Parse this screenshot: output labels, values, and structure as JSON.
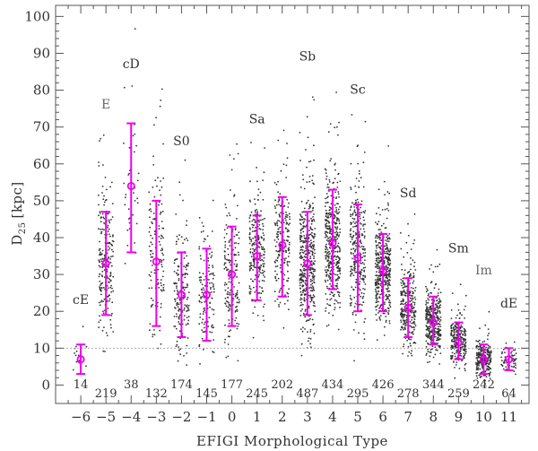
{
  "chart_data": {
    "type": "scatter",
    "title": "",
    "xlabel": "EFIGI Morphological Type",
    "ylabel_main": "D",
    "ylabel_sub": "25",
    "ylabel_unit": "[kpc]",
    "xlim": [
      -7.0,
      11.8
    ],
    "ylim": [
      -5,
      103
    ],
    "x_ticks": [
      -6,
      -5,
      -4,
      -3,
      -2,
      -1,
      0,
      1,
      2,
      3,
      4,
      5,
      6,
      7,
      8,
      9,
      10,
      11
    ],
    "x_tick_labels": [
      "−6",
      "−5",
      "−4",
      "−3",
      "−2",
      "−1",
      "0",
      "1",
      "2",
      "3",
      "4",
      "5",
      "6",
      "7",
      "8",
      "9",
      "10",
      "11"
    ],
    "y_ticks": [
      0,
      10,
      20,
      30,
      40,
      50,
      60,
      70,
      80,
      90,
      100
    ],
    "y_tick_labels": [
      "0",
      "10",
      "20",
      "30",
      "40",
      "50",
      "60",
      "70",
      "80",
      "90",
      "100"
    ],
    "reference_line_y": 10,
    "colors": {
      "points": "#333333",
      "median": "#ee00ee",
      "reference_line": "#aaaaaa",
      "axes": "#555555"
    },
    "series": [
      {
        "type": -6,
        "label": "cE",
        "count": "14",
        "median": 7,
        "err_low": 3,
        "err_high": 11,
        "label_y": 22
      },
      {
        "type": -5,
        "label": "E",
        "count": "219",
        "median": 33,
        "err_low": 19,
        "err_high": 47,
        "label_y": 75
      },
      {
        "type": -4,
        "label": "cD",
        "count": "38",
        "median": 54,
        "err_low": 36,
        "err_high": 71,
        "label_y": 86
      },
      {
        "type": -3,
        "label": "",
        "count": "132",
        "median": 33.5,
        "err_low": 16,
        "err_high": 50,
        "label_y": null
      },
      {
        "type": -2,
        "label": "S0",
        "count": "174",
        "median": 24.5,
        "err_low": 13,
        "err_high": 36,
        "label_y": 65
      },
      {
        "type": -1,
        "label": "",
        "count": "145",
        "median": 24.5,
        "err_low": 12,
        "err_high": 37,
        "label_y": null
      },
      {
        "type": 0,
        "label": "",
        "count": "177",
        "median": 30,
        "err_low": 16,
        "err_high": 43,
        "label_y": null
      },
      {
        "type": 1,
        "label": "Sa",
        "count": "245",
        "median": 35,
        "err_low": 23,
        "err_high": 46,
        "label_y": 71
      },
      {
        "type": 2,
        "label": "",
        "count": "202",
        "median": 38,
        "err_low": 24,
        "err_high": 51,
        "label_y": null
      },
      {
        "type": 3,
        "label": "Sb",
        "count": "487",
        "median": 33,
        "err_low": 19,
        "err_high": 47,
        "label_y": 88
      },
      {
        "type": 4,
        "label": "",
        "count": "434",
        "median": 38.5,
        "err_low": 26,
        "err_high": 53,
        "label_y": null
      },
      {
        "type": 5,
        "label": "Sc",
        "count": "295",
        "median": 34.5,
        "err_low": 20,
        "err_high": 49,
        "label_y": 79
      },
      {
        "type": 6,
        "label": "",
        "count": "426",
        "median": 31,
        "err_low": 20,
        "err_high": 41,
        "label_y": null
      },
      {
        "type": 7,
        "label": "Sd",
        "count": "278",
        "median": 21,
        "err_low": 13,
        "err_high": 29,
        "label_y": 51
      },
      {
        "type": 8,
        "label": "",
        "count": "344",
        "median": 17,
        "err_low": 11,
        "err_high": 24,
        "label_y": null
      },
      {
        "type": 9,
        "label": "Sm",
        "count": "259",
        "median": 11.5,
        "err_low": 7,
        "err_high": 17,
        "label_y": 36
      },
      {
        "type": 10,
        "label": "Im",
        "count": "242",
        "median": 7,
        "err_low": 3,
        "err_high": 11,
        "label_y": 30
      },
      {
        "type": 11,
        "label": "dE",
        "count": "64",
        "median": 7,
        "err_low": 4,
        "err_high": 10,
        "label_y": 21
      }
    ]
  }
}
